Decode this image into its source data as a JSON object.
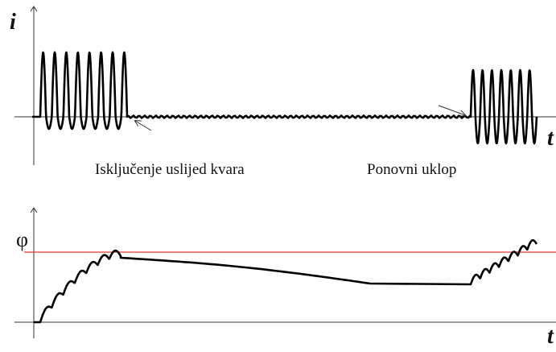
{
  "top": {
    "y_label": "i",
    "x_label": "t",
    "annotation_left": "Isključenje uslijed kvara",
    "annotation_right": "Ponovni uklop"
  },
  "bottom": {
    "y_label": "φ",
    "x_label": "t"
  }
}
